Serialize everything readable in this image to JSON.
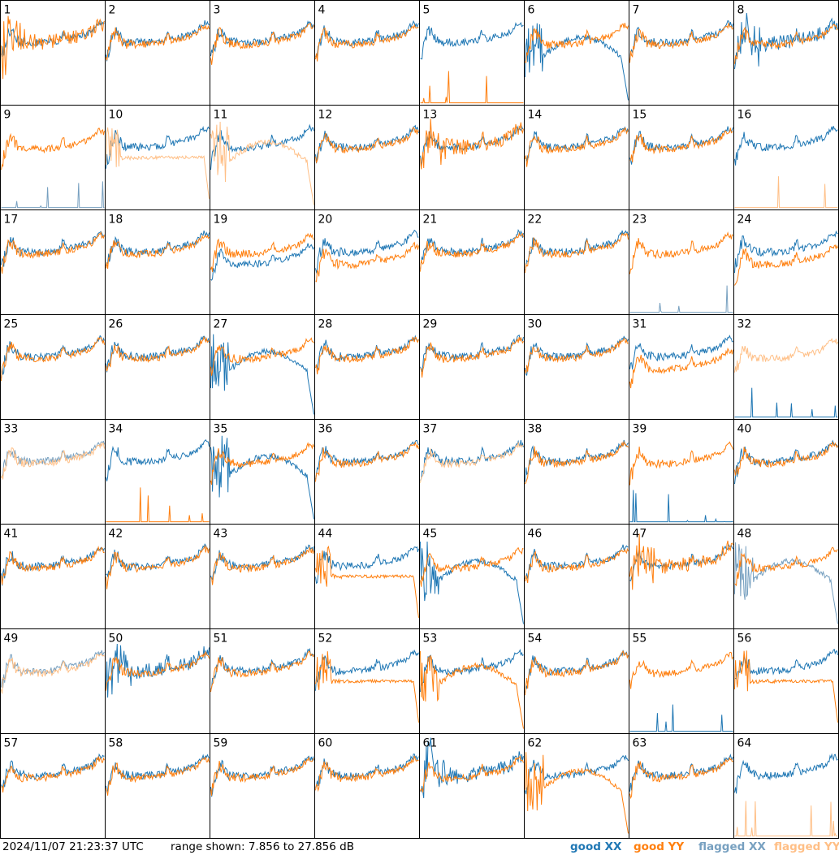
{
  "footer": {
    "timestamp": "2024/11/07 21:23:37 UTC",
    "range_text": "range shown: 7.856 to 27.856 dB",
    "legend": {
      "good_xx": "good XX",
      "good_yy": "good YY",
      "flagged_xx": "flagged XX",
      "flagged_yy": "flagged YY"
    }
  },
  "chart_data": {
    "type": "line",
    "ylim": [
      7.856,
      27.856
    ],
    "y_unit": "dB",
    "colors": {
      "good_xx": "#1f77b4",
      "good_yy": "#ff7f0e",
      "flagged_xx": "#77a0c0",
      "flagged_yy": "#ffbf86"
    },
    "panel_labels": [
      "1",
      "2",
      "3",
      "4",
      "5",
      "6",
      "7",
      "8",
      "9",
      "10",
      "11",
      "12",
      "13",
      "14",
      "15",
      "16",
      "17",
      "18",
      "19",
      "20",
      "21",
      "22",
      "23",
      "24",
      "25",
      "26",
      "27",
      "28",
      "29",
      "30",
      "31",
      "32",
      "33",
      "34",
      "35",
      "36",
      "37",
      "38",
      "39",
      "40",
      "41",
      "42",
      "43",
      "44",
      "45",
      "46",
      "47",
      "48",
      "49",
      "50",
      "51",
      "52",
      "53",
      "54",
      "55",
      "56",
      "57",
      "58",
      "59",
      "60",
      "61",
      "62",
      "63",
      "64"
    ],
    "special": {
      "1": {
        "yy": "wide"
      },
      "5": {
        "yy": "dead"
      },
      "6": {
        "xx": "hump"
      },
      "8": {
        "xx": "wide"
      },
      "9": {
        "xx": "dead",
        "xx_flagged": true
      },
      "10": {
        "yy": "flat",
        "yy_flagged": true
      },
      "11": {
        "yy": "hump",
        "yy_flagged": true
      },
      "13": {
        "yy": "wide"
      },
      "16": {
        "yy": "dead",
        "yy_flagged": true
      },
      "19": {
        "xx": "low"
      },
      "20": {
        "yy": "low"
      },
      "23": {
        "xx": "dead",
        "xx_flagged": true
      },
      "24": {
        "yy": "low"
      },
      "27": {
        "xx": "hump"
      },
      "31": {
        "yy": "low"
      },
      "32": {
        "xx": "dead",
        "yy_flagged": true
      },
      "33": {
        "xx_flagged": true,
        "yy_flagged": true
      },
      "34": {
        "yy": "dead"
      },
      "35": {
        "xx": "hump"
      },
      "37": {
        "yy_flagged": true
      },
      "39": {
        "xx": "dead"
      },
      "44": {
        "yy": "flat"
      },
      "45": {
        "xx": "hump"
      },
      "47": {
        "yy": "wide"
      },
      "48": {
        "xx": "hump",
        "xx_flagged": true
      },
      "49": {
        "xx_flagged": true,
        "yy_flagged": true
      },
      "50": {
        "xx": "wide"
      },
      "52": {
        "yy": "flat"
      },
      "53": {
        "yy": "hump"
      },
      "55": {
        "xx": "dead"
      },
      "56": {
        "yy": "flat"
      },
      "61": {
        "xx": "wide"
      },
      "62": {
        "yy": "hump"
      },
      "64": {
        "yy": "dead",
        "yy_flagged": true
      }
    }
  }
}
